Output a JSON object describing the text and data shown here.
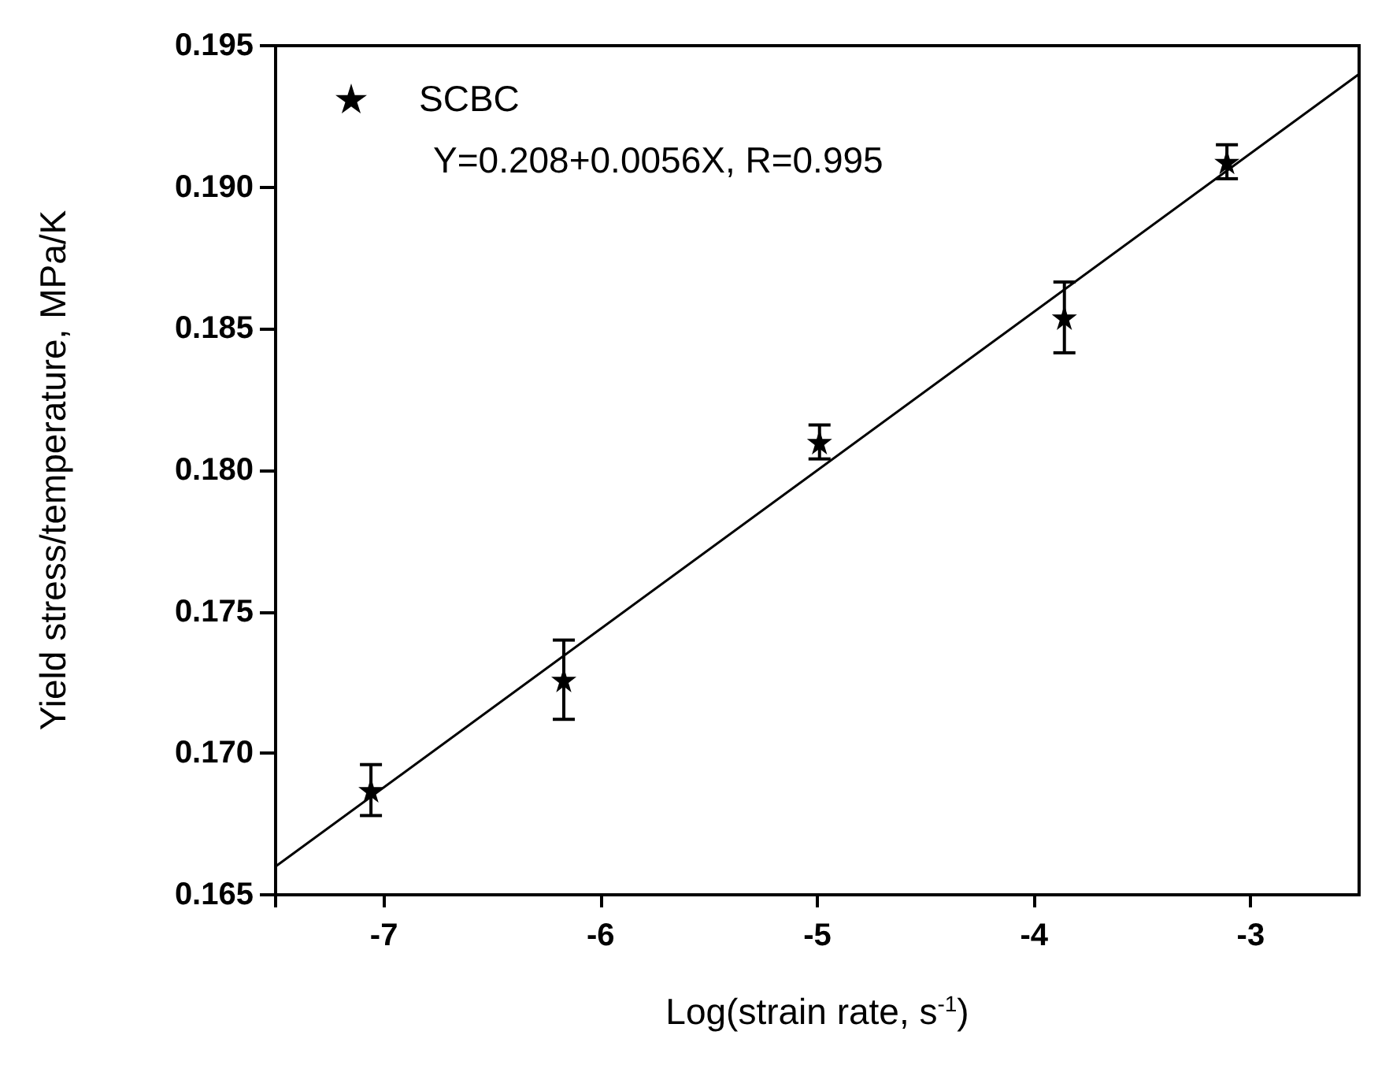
{
  "chart_data": {
    "type": "scatter",
    "xlabel": "Log(strain rate, s$^{-1}$)",
    "ylabel": "Yield stress/temperature, MPa/K",
    "annotations": [
      "Y=0.208+0.0056X, R=0.995"
    ],
    "xlim": [
      -7.5,
      -2.5
    ],
    "xticks": [
      {
        "value": -7.5,
        "label": null
      },
      -7,
      -6,
      -5,
      -4,
      -3
    ],
    "ylim": [
      0.165,
      0.195
    ],
    "yticks": [
      0.165,
      {
        "value": 0.17,
        "label": "0.170"
      },
      0.175,
      {
        "value": 0.18,
        "label": "0.180"
      },
      0.185,
      {
        "value": 0.19,
        "label": "0.190"
      },
      0.195
    ],
    "grid": false,
    "legend": "top left",
    "series": [
      {
        "name": "SCBC",
        "color": "#000000",
        "marker": "star",
        "x": [
          -7.06,
          -6.17,
          -4.99,
          -3.86,
          -3.11
        ],
        "values": [
          0.1687,
          0.1726,
          0.181,
          0.1854,
          0.1909
        ],
        "errors": [
          0.0009,
          0.0014,
          0.0006,
          0.00125,
          0.0006
        ]
      },
      {
        "type": "line",
        "color": "#000000",
        "line_style": "solid",
        "marker": "none",
        "x": [
          -7.5,
          -2.5
        ],
        "values": [
          0.166,
          0.194
        ]
      }
    ]
  }
}
